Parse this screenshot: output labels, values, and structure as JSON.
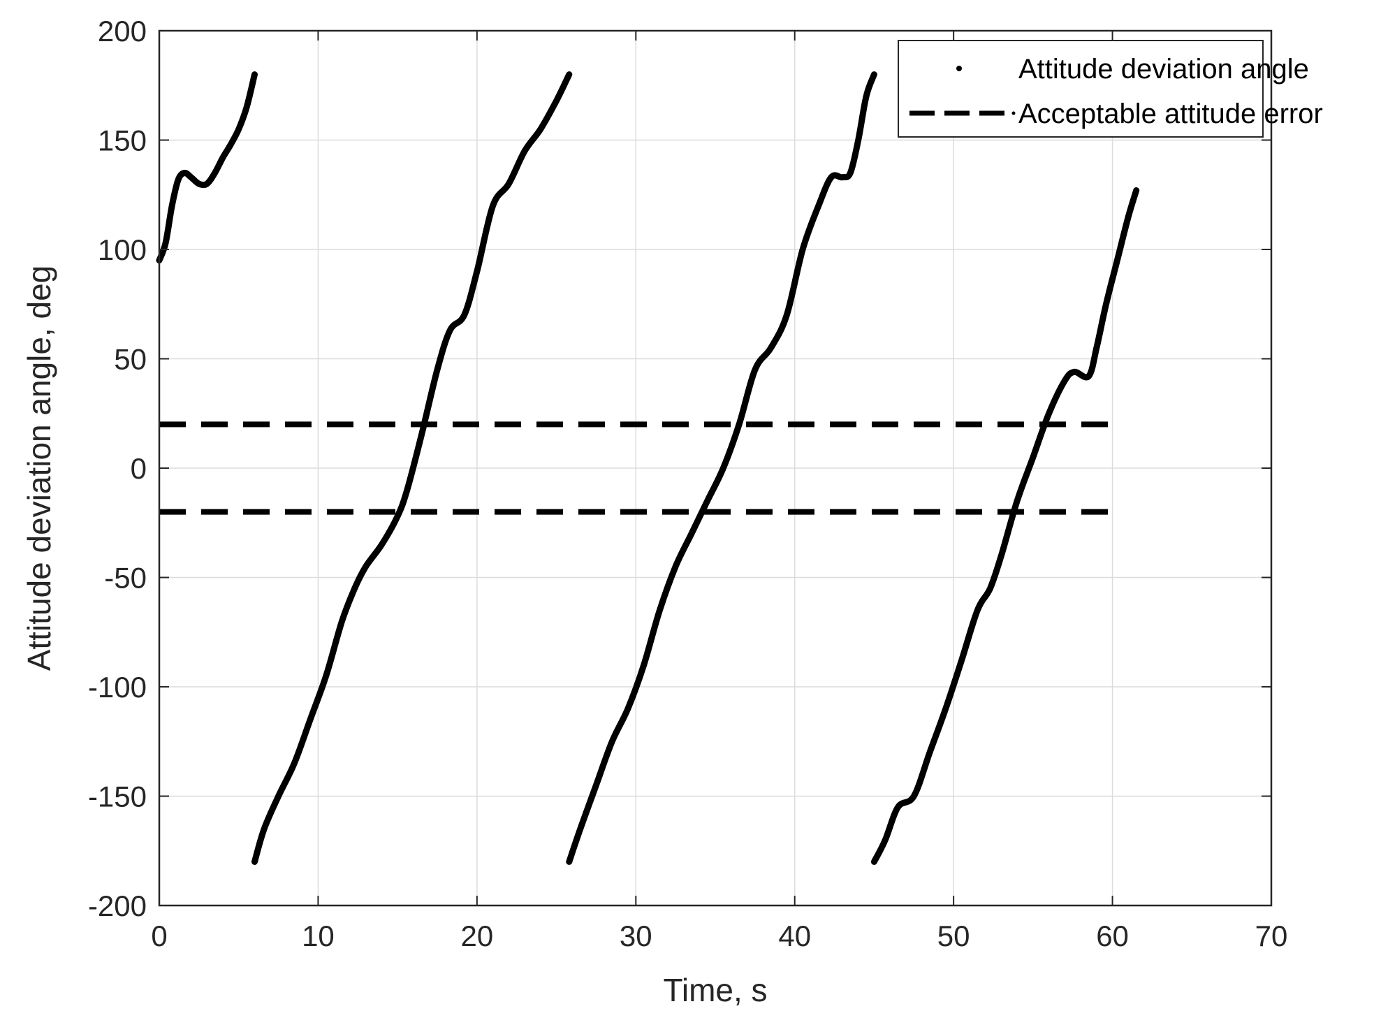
{
  "chart_data": {
    "type": "line",
    "title": "",
    "xlabel": "Time, s",
    "ylabel": "Attitude deviation angle, deg",
    "xlim": [
      0,
      70
    ],
    "ylim": [
      -200,
      200
    ],
    "xticks": [
      "0",
      "10",
      "20",
      "30",
      "40",
      "50",
      "60",
      "70"
    ],
    "yticks": [
      "200",
      "150",
      "100",
      "50",
      "0",
      "-50",
      "-100",
      "-150",
      "-200"
    ],
    "grid": true,
    "legend_position": "top-right",
    "colors": {
      "series": "#000000",
      "grid": "#dcdcdc",
      "axis": "#262626"
    },
    "series": [
      {
        "name": "Attitude deviation angle",
        "style": "dotted-thick",
        "segments": [
          {
            "x": [
              0,
              0.4,
              0.8,
              1.2,
              1.6,
              2.0,
              2.5,
              3.0,
              3.5,
              4.0,
              4.5,
              5.0,
              5.5,
              6.0
            ],
            "y": [
              95,
              103,
              120,
              132,
              135,
              133,
              130,
              130,
              135,
              142,
              148,
              155,
              165,
              180
            ]
          },
          {
            "x": [
              6.0,
              6.6,
              7.5,
              8.5,
              9.5,
              10.5,
              11.5,
              12.3,
              13.0,
              14.0,
              15.0,
              15.6,
              16.5,
              17.5,
              18.3,
              19.2,
              20.0,
              21.0,
              22.0,
              23.0,
              24.0,
              25.0,
              25.8
            ],
            "y": [
              -180,
              -165,
              -150,
              -135,
              -115,
              -95,
              -70,
              -55,
              -45,
              -35,
              -22,
              -10,
              15,
              45,
              63,
              70,
              90,
              120,
              130,
              145,
              155,
              168,
              180
            ]
          },
          {
            "x": [
              25.8,
              26.5,
              27.5,
              28.5,
              29.5,
              30.5,
              31.5,
              32.5,
              33.5,
              34.5,
              35.5,
              36.5,
              37.5,
              38.5,
              39.5,
              40.5,
              41.5,
              42.3,
              43.0,
              43.5,
              44.0,
              44.5,
              45.0
            ],
            "y": [
              -180,
              -165,
              -145,
              -125,
              -110,
              -90,
              -65,
              -45,
              -30,
              -15,
              0,
              20,
              45,
              55,
              70,
              100,
              120,
              133,
              133,
              135,
              150,
              170,
              180
            ]
          },
          {
            "x": [
              45.0,
              45.7,
              46.5,
              47.5,
              48.5,
              49.5,
              50.5,
              51.5,
              52.3,
              53.0,
              54.0,
              55.0,
              56.0,
              57.0,
              57.6,
              58.5,
              59.0,
              59.6,
              60.3,
              61.0,
              61.5
            ],
            "y": [
              -180,
              -170,
              -155,
              -150,
              -130,
              -110,
              -88,
              -65,
              -55,
              -40,
              -15,
              5,
              25,
              40,
              44,
              42,
              55,
              75,
              95,
              115,
              127
            ]
          }
        ]
      },
      {
        "name": "Acceptable attitude error",
        "style": "dashed",
        "segments": [
          {
            "x": [
              0,
              60.5
            ],
            "y": [
              20,
              20
            ]
          },
          {
            "x": [
              0,
              60.5
            ],
            "y": [
              -20,
              -20
            ]
          }
        ]
      }
    ]
  }
}
